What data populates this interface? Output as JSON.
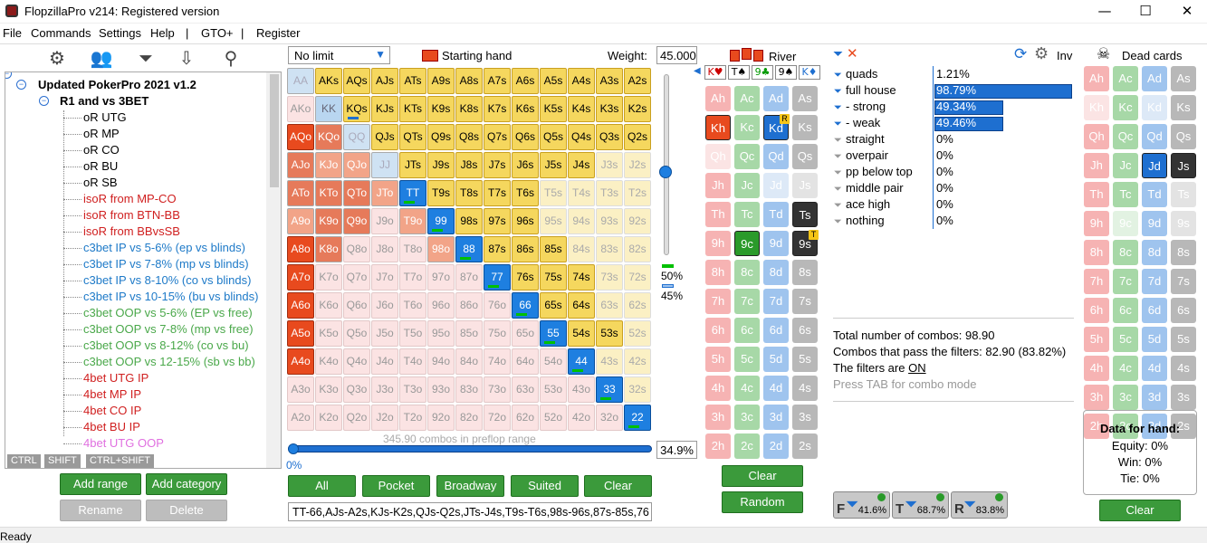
{
  "window": {
    "title": "FlopzillaPro v214: Registered version",
    "min": "—",
    "max": "☐",
    "close": "✕"
  },
  "menu": [
    "File",
    "Commands",
    "Settings",
    "Help",
    "|",
    "GTO+",
    "|",
    "Register"
  ],
  "tree": {
    "root": "Updated PokerPro 2021 v1.2",
    "group": "R1 and vs 3BET",
    "items": [
      {
        "label": "oR UTG",
        "color": "#000"
      },
      {
        "label": "oR MP",
        "color": "#000"
      },
      {
        "label": "oR CO",
        "color": "#000"
      },
      {
        "label": "oR BU",
        "color": "#000"
      },
      {
        "label": "oR SB",
        "color": "#000"
      },
      {
        "label": "isoR from MP-CO",
        "color": "#d02020"
      },
      {
        "label": "isoR from BTN-BB",
        "color": "#d02020"
      },
      {
        "label": "isoR from BBvsSB",
        "color": "#d02020"
      },
      {
        "label": "c3bet IP vs 5-6% (ep vs blinds)",
        "color": "#1e7ac8"
      },
      {
        "label": "c3bet IP vs 7-8% (mp vs blinds)",
        "color": "#1e7ac8"
      },
      {
        "label": "c3bet IP vs 8-10% (co vs blinds)",
        "color": "#1e7ac8"
      },
      {
        "label": "c3bet IP vs 10-15% (bu vs blinds)",
        "color": "#1e7ac8"
      },
      {
        "label": "c3bet OOP vs 5-6% (EP vs free)",
        "color": "#4aa84a"
      },
      {
        "label": "c3bet OOP vs 7-8% (mp vs free)",
        "color": "#4aa84a"
      },
      {
        "label": "c3bet OOP vs 8-12% (co vs bu)",
        "color": "#4aa84a"
      },
      {
        "label": "c3bet OOP vs 12-15% (sb vs bb)",
        "color": "#4aa84a"
      },
      {
        "label": "4bet UTG IP",
        "color": "#d02020"
      },
      {
        "label": "4bet MP IP",
        "color": "#d02020"
      },
      {
        "label": "4bet CO IP",
        "color": "#d02020"
      },
      {
        "label": "4bet BU IP",
        "color": "#d02020"
      },
      {
        "label": "4bet UTG OOP",
        "color": "#e070e0"
      }
    ],
    "keys": [
      "CTRL",
      "SHIFT",
      "CTRL+SHIFT"
    ]
  },
  "tree_buttons": {
    "add_range": "Add range",
    "add_category": "Add category",
    "rename": "Rename",
    "delete": "Delete"
  },
  "range": {
    "game": "No limit",
    "starting_hand": "Starting hand",
    "weight_label": "Weight:",
    "weight": "45.000",
    "combos_text": "345.90 combos in preflop range",
    "pct": "34.9%",
    "slider_pct": "0%",
    "w1": "50%",
    "w2": "45%",
    "buttons": [
      "All",
      "Pocket",
      "Broadway",
      "Suited",
      "Clear"
    ],
    "range_text": "TT-66,AJs-A2s,KJs-K2s,QJs-Q2s,JTs-J4s,T9s-T6s,98s-96s,87s-85s,76"
  },
  "grid": {
    "ranks": [
      "A",
      "K",
      "Q",
      "J",
      "T",
      "9",
      "8",
      "7",
      "6",
      "5",
      "4",
      "3",
      "2"
    ]
  },
  "board": {
    "title": "River",
    "slots": [
      "K♥",
      "T♠",
      "9♣",
      "9♠",
      "K♦"
    ],
    "clear": "Clear",
    "random": "Random"
  },
  "filters": {
    "inv": "Inv",
    "rows": [
      {
        "label": "quads",
        "pct": "1.21%",
        "bar": 0.0
      },
      {
        "label": "full house",
        "pct": "98.79%",
        "bar": 1.0
      },
      {
        "label": "- strong",
        "pct": "49.34%",
        "bar": 0.5
      },
      {
        "label": "- weak",
        "pct": "49.46%",
        "bar": 0.5
      },
      {
        "label": "straight",
        "pct": "0%",
        "bar": 0
      },
      {
        "label": "overpair",
        "pct": "0%",
        "bar": 0
      },
      {
        "label": "pp below top",
        "pct": "0%",
        "bar": 0
      },
      {
        "label": "middle pair",
        "pct": "0%",
        "bar": 0
      },
      {
        "label": "ace high",
        "pct": "0%",
        "bar": 0
      },
      {
        "label": "nothing",
        "pct": "0%",
        "bar": 0
      }
    ],
    "total": "Total number of combos: 98.90",
    "pass": "Combos that pass the filters: 82.90 (83.82%)",
    "filters_are": "The filters are ",
    "on": "ON",
    "tab": "Press TAB for combo mode",
    "ftr": [
      {
        "l": "F",
        "v": "41.6%"
      },
      {
        "l": "T",
        "v": "68.7%"
      },
      {
        "l": "R",
        "v": "83.8%"
      }
    ]
  },
  "dead": {
    "title": "Dead cards",
    "clear": "Clear",
    "data_title": "Data for hand:",
    "equity": "Equity: 0%",
    "win": "Win: 0%",
    "tie": "Tie: 0%"
  },
  "status": "Ready",
  "colors": {
    "green_btn": "#3b9a3b",
    "accent_blue": "#1e6fd0"
  }
}
